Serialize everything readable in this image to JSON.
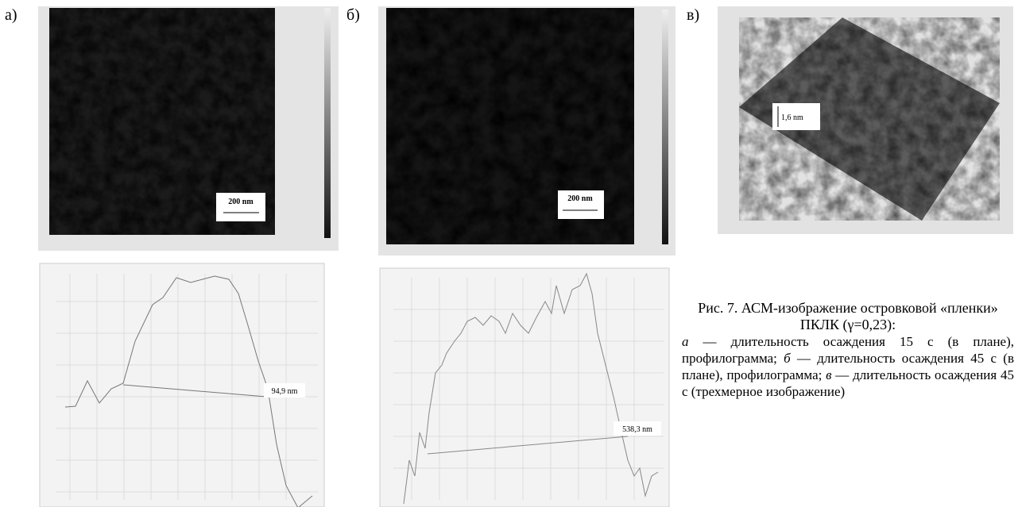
{
  "panels": [
    {
      "letter": "а)",
      "scale_bar": "200 nm",
      "profile_label": "94,9 nm"
    },
    {
      "letter": "б)",
      "scale_bar": "200 nm",
      "profile_label": "538,3 nm"
    },
    {
      "letter": "в)",
      "height_bar": "1,6 nm"
    }
  ],
  "caption": {
    "title": "Рис. 7. АСМ-изображение островковой «пленки» ПКЛК (γ=0,23):",
    "items": [
      {
        "letter": "а",
        "text": " — длительность осаждения 15 с (в плане), профилограмма; "
      },
      {
        "letter": "б",
        "text": " — длительность осаждения 45 с (в плане), профилограмма; "
      },
      {
        "letter": "в",
        "text": " — длительность осаждения 45 с (трехмерное изображение)"
      }
    ]
  }
}
